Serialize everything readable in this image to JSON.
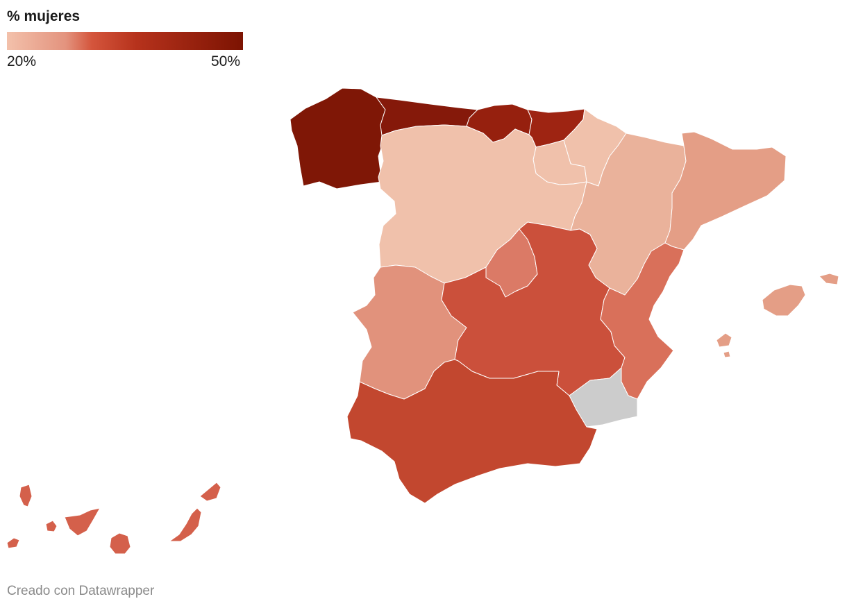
{
  "legend": {
    "title": "% mujeres",
    "min_label": "20%",
    "max_label": "50%",
    "gradient": [
      "#f3c1ab",
      "#e3937e",
      "#d4553c",
      "#b6321c",
      "#7c1302"
    ]
  },
  "footer": {
    "credit": "Creado con Datawrapper"
  },
  "regions": [
    {
      "name": "Galicia",
      "color": "#7f1706"
    },
    {
      "name": "Asturias",
      "color": "#85190a"
    },
    {
      "name": "Cantabria",
      "color": "#96200e"
    },
    {
      "name": "País Vasco",
      "color": "#9e2412"
    },
    {
      "name": "Navarra",
      "color": "#f0c1ab"
    },
    {
      "name": "La Rioja",
      "color": "#f0c1ab"
    },
    {
      "name": "Castilla y León",
      "color": "#f0c1ab"
    },
    {
      "name": "Aragón",
      "color": "#eab29b"
    },
    {
      "name": "Cataluña",
      "color": "#e49e86"
    },
    {
      "name": "Madrid",
      "color": "#db7a66"
    },
    {
      "name": "Extremadura",
      "color": "#e1927c"
    },
    {
      "name": "Castilla-La Mancha",
      "color": "#cb503b"
    },
    {
      "name": "Comunitat Valenciana",
      "color": "#d9705a"
    },
    {
      "name": "Región de Murcia",
      "color": "#cc5540"
    },
    {
      "name": "Andalucía",
      "color": "#c2472f"
    },
    {
      "name": "Illes Balears",
      "color": "#e49e86"
    },
    {
      "name": "Canarias",
      "color": "#d4604b"
    }
  ]
}
